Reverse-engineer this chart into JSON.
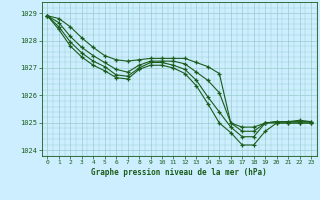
{
  "title": "Graphe pression niveau de la mer (hPa)",
  "background_color": "#cceeff",
  "grid_color": "#99cccc",
  "line_color": "#1a5c1a",
  "marker_color": "#1a5c1a",
  "xlim": [
    -0.5,
    23.5
  ],
  "ylim": [
    1023.8,
    1029.4
  ],
  "yticks": [
    1024,
    1025,
    1026,
    1027,
    1028,
    1029
  ],
  "xticks": [
    0,
    1,
    2,
    3,
    4,
    5,
    6,
    7,
    8,
    9,
    10,
    11,
    12,
    13,
    14,
    15,
    16,
    17,
    18,
    19,
    20,
    21,
    22,
    23
  ],
  "series": [
    [
      1028.9,
      1028.8,
      1028.5,
      1028.1,
      1027.75,
      1027.45,
      1027.3,
      1027.25,
      1027.3,
      1027.35,
      1027.35,
      1027.35,
      1027.35,
      1027.2,
      1027.05,
      1026.8,
      1025.0,
      1024.85,
      1024.85,
      1025.0,
      1025.05,
      1025.05,
      1025.1,
      1025.05
    ],
    [
      1028.9,
      1028.65,
      1028.15,
      1027.75,
      1027.45,
      1027.2,
      1026.95,
      1026.85,
      1027.1,
      1027.25,
      1027.25,
      1027.25,
      1027.15,
      1026.85,
      1026.55,
      1026.1,
      1025.0,
      1024.7,
      1024.7,
      1025.0,
      1025.05,
      1025.05,
      1025.05,
      1025.05
    ],
    [
      1028.9,
      1028.5,
      1027.95,
      1027.55,
      1027.25,
      1027.05,
      1026.75,
      1026.7,
      1027.0,
      1027.2,
      1027.2,
      1027.1,
      1026.95,
      1026.55,
      1025.95,
      1025.4,
      1024.85,
      1024.5,
      1024.5,
      1025.0,
      1025.0,
      1025.0,
      1025.0,
      1025.0
    ],
    [
      1028.9,
      1028.4,
      1027.8,
      1027.4,
      1027.1,
      1026.9,
      1026.65,
      1026.6,
      1026.95,
      1027.1,
      1027.1,
      1027.0,
      1026.8,
      1026.35,
      1025.7,
      1025.0,
      1024.65,
      1024.2,
      1024.2,
      1024.7,
      1025.0,
      1025.0,
      1025.0,
      1025.0
    ]
  ]
}
